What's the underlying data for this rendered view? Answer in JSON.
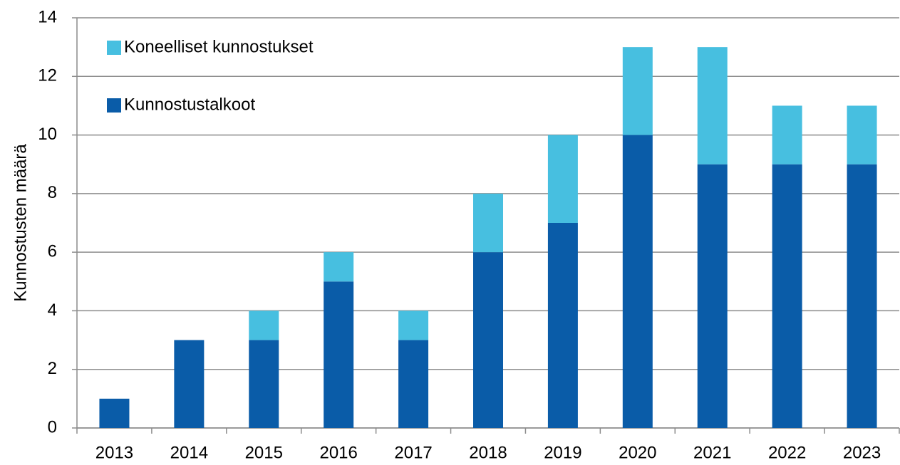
{
  "chart_data": {
    "type": "stacked_bar",
    "y_axis_label": "Kunnostusten määrä",
    "categories": [
      "2013",
      "2014",
      "2015",
      "2016",
      "2017",
      "2018",
      "2019",
      "2020",
      "2021",
      "2022",
      "2023"
    ],
    "series": [
      {
        "name": "Kunnostustalkoot",
        "color": "#0a5ca8",
        "values": [
          1,
          3,
          3,
          5,
          3,
          6,
          7,
          10,
          9,
          9,
          9
        ]
      },
      {
        "name": "Koneelliset kunnostukset",
        "color": "#47bfe0",
        "values": [
          0,
          0,
          1,
          1,
          1,
          2,
          3,
          3,
          4,
          2,
          2
        ]
      }
    ],
    "ylim": [
      0,
      14
    ],
    "yticks": [
      0,
      2,
      4,
      6,
      8,
      10,
      12,
      14
    ],
    "grid": true,
    "legend": "top-left"
  }
}
